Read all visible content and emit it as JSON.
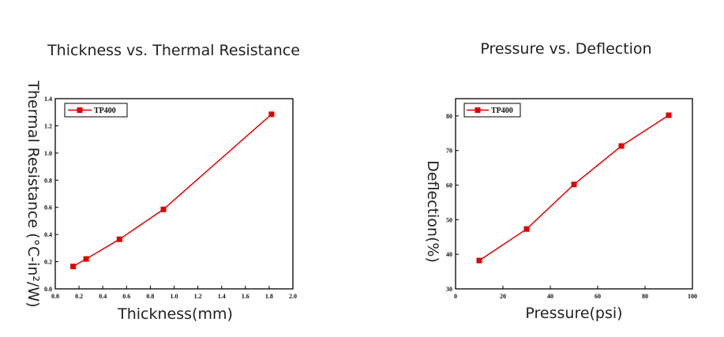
{
  "chart_data": [
    {
      "type": "line",
      "title": "Thickness vs. Thermal Resistance",
      "xlabel": "Thickness(mm)",
      "ylabel": "Thermal Resistance (°C-in²/W)",
      "xlim": [
        0.0,
        2.0
      ],
      "ylim": [
        0.0,
        1.4
      ],
      "xticks": [
        "0.0",
        "0.2",
        "0.4",
        "0.6",
        "0.8",
        "1.0",
        "1.2",
        "1.4",
        "1.6",
        "1.8",
        "2.0"
      ],
      "yticks": [
        "0.0",
        "0.2",
        "0.4",
        "0.6",
        "0.8",
        "1.0",
        "1.2",
        "1.4"
      ],
      "legend_position": "top-left",
      "grid": false,
      "series": [
        {
          "name": "TP400",
          "color": "#e00000",
          "x": [
            0.15,
            0.26,
            0.54,
            0.91,
            1.82
          ],
          "y": [
            0.165,
            0.22,
            0.365,
            0.585,
            1.285
          ]
        }
      ]
    },
    {
      "type": "line",
      "title": "Pressure vs. Deflection",
      "xlabel": "Pressure(psi)",
      "ylabel": "Deflection(%)",
      "xlim": [
        0,
        100
      ],
      "ylim": [
        30,
        85
      ],
      "xticks": [
        "0",
        "20",
        "40",
        "60",
        "80",
        "100"
      ],
      "yticks": [
        "30",
        "40",
        "50",
        "60",
        "70",
        "80"
      ],
      "legend_position": "top-left",
      "grid": false,
      "series": [
        {
          "name": "TP400",
          "color": "#e00000",
          "x": [
            10,
            30,
            50,
            70,
            90
          ],
          "y": [
            38.2,
            47.3,
            60.2,
            71.3,
            80.2
          ]
        }
      ]
    }
  ]
}
